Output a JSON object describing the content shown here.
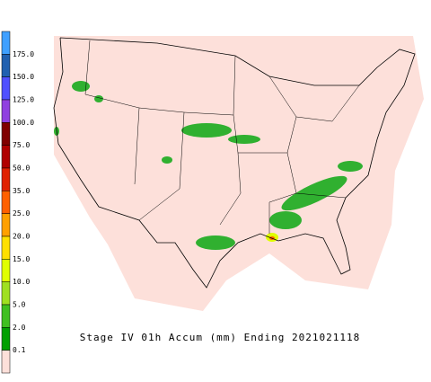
{
  "legend": {
    "labels": [
      "175.0",
      "150.0",
      "125.0",
      "100.0",
      "75.0",
      "50.0",
      "35.0",
      "25.0",
      "20.0",
      "15.0",
      "10.0",
      "5.0",
      "2.0",
      "0.1"
    ],
    "colors": [
      "#3fa0ff",
      "#2060b0",
      "#5050ff",
      "#9040e0",
      "#800000",
      "#b00000",
      "#e02000",
      "#ff6000",
      "#ffa000",
      "#ffe000",
      "#e0ff00",
      "#a0e020",
      "#40c020",
      "#00a000",
      "#fde0da"
    ]
  },
  "caption": "Stage IV 01h Accum (mm) Ending 2021021118"
}
